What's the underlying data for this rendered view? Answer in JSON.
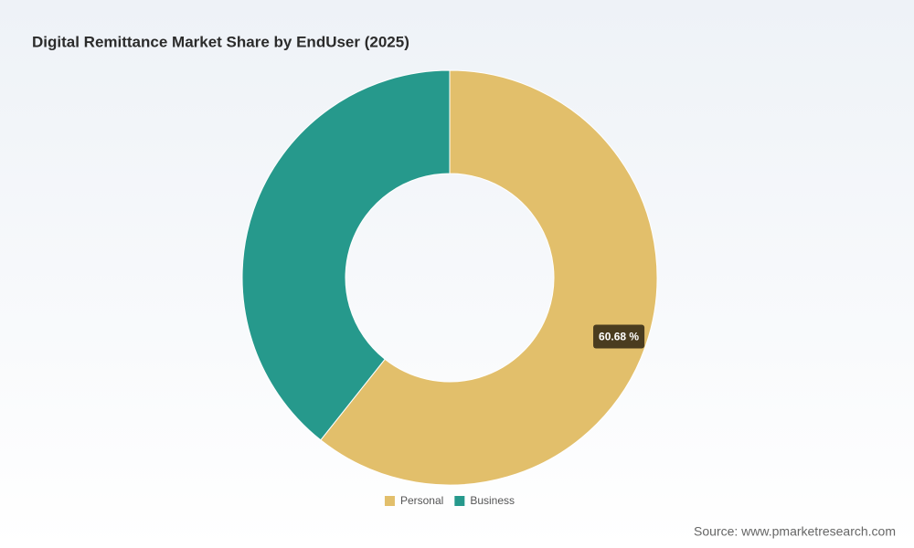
{
  "chart_data": {
    "type": "donut",
    "title": "Digital Remittance Market Share by EndUser (2025)",
    "categories": [
      "Personal",
      "Business"
    ],
    "values": [
      60.68,
      39.32
    ],
    "value_labels": [
      "60.68 %",
      null
    ],
    "colors": [
      "#e2bf6b",
      "#26998c"
    ],
    "source": "Source: www.pmarketresearch.com"
  }
}
